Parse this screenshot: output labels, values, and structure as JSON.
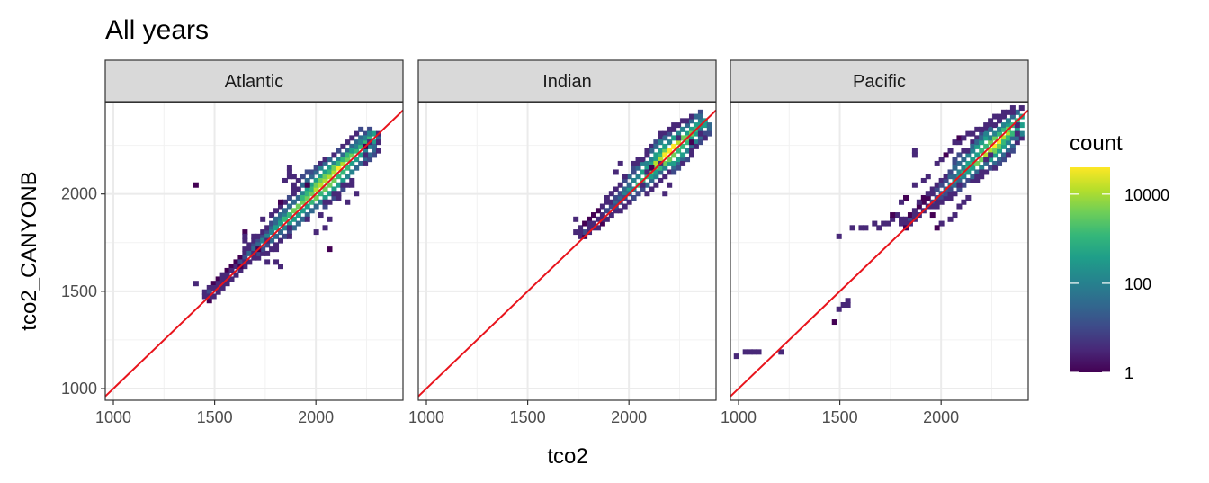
{
  "chart_data": {
    "type": "heatmap",
    "title": "All years",
    "xlabel": "tco2",
    "ylabel": "tco2_CANYONB",
    "xlim": [
      960,
      2430
    ],
    "ylim": [
      940,
      2470
    ],
    "x_ticks": [
      1000,
      1500,
      2000
    ],
    "y_ticks": [
      1000,
      1500,
      2000
    ],
    "grid": true,
    "facets": [
      "Atlantic",
      "Indian",
      "Pacific"
    ],
    "reference_line": {
      "slope": 1,
      "intercept": 0,
      "color": "#e8141c"
    },
    "legend": {
      "title": "count",
      "scale": "log10",
      "breaks": [
        "10000",
        "100",
        "1"
      ],
      "break_values": [
        10000,
        100,
        1
      ],
      "range": [
        1,
        40000
      ],
      "palette": [
        "#440154",
        "#482878",
        "#3e4a89",
        "#31688e",
        "#26828e",
        "#1f9e89",
        "#35b779",
        "#6ece58",
        "#b5de2b",
        "#fde725"
      ],
      "position": "right"
    },
    "bins": {
      "Atlantic": {
        "core": [
          [
            1460,
            1475
          ],
          [
            2290,
            2300
          ]
        ],
        "outliers": [
          [
            1415,
            2045
          ],
          [
            1400,
            1535
          ],
          [
            1460,
            1470
          ],
          [
            1470,
            1480
          ],
          [
            1510,
            1520
          ],
          [
            1540,
            1550
          ],
          [
            1560,
            1540
          ],
          [
            1550,
            1580
          ],
          [
            1570,
            1560
          ],
          [
            1590,
            1570
          ],
          [
            1620,
            1620
          ],
          [
            1650,
            1640
          ],
          [
            1660,
            1660
          ],
          [
            1640,
            1810
          ],
          [
            1650,
            1790
          ],
          [
            1660,
            1760
          ],
          [
            1700,
            1780
          ],
          [
            1720,
            1710
          ],
          [
            1740,
            1700
          ],
          [
            1700,
            1690
          ],
          [
            1730,
            1860
          ],
          [
            1750,
            1750
          ],
          [
            1760,
            1640
          ],
          [
            1800,
            1720
          ],
          [
            1800,
            1660
          ],
          [
            1830,
            1620
          ],
          [
            1830,
            1960
          ],
          [
            1830,
            1750
          ],
          [
            1860,
            1820
          ],
          [
            1880,
            1780
          ],
          [
            1890,
            2040
          ],
          [
            1900,
            2080
          ],
          [
            1920,
            2060
          ],
          [
            1950,
            2040
          ],
          [
            1980,
            2030
          ],
          [
            2010,
            2070
          ],
          [
            2020,
            1900
          ],
          [
            2040,
            1830
          ],
          [
            2010,
            1800
          ],
          [
            2060,
            1860
          ],
          [
            2070,
            1720
          ],
          [
            1840,
            2070
          ],
          [
            1860,
            2080
          ],
          [
            1900,
            1820
          ],
          [
            1920,
            1850
          ],
          [
            1940,
            1870
          ],
          [
            1960,
            1880
          ],
          [
            2000,
            2110
          ],
          [
            2040,
            1960
          ],
          [
            2080,
            2000
          ],
          [
            2100,
            2010
          ],
          [
            2120,
            1980
          ],
          [
            2130,
            2040
          ],
          [
            2150,
            2040
          ],
          [
            2180,
            2040
          ],
          [
            2200,
            2000
          ],
          [
            2150,
            1950
          ],
          [
            2170,
            2250
          ],
          [
            2190,
            2230
          ],
          [
            2240,
            2240
          ],
          [
            2270,
            2260
          ],
          [
            2250,
            2190
          ],
          [
            2300,
            2310
          ],
          [
            2320,
            2300
          ],
          [
            1870,
            2120
          ],
          [
            1880,
            2140
          ],
          [
            1900,
            2020
          ],
          [
            1890,
            1960
          ],
          [
            2060,
            2120
          ]
        ]
      },
      "Indian": {
        "core": [
          [
            1760,
            1790
          ],
          [
            2380,
            2380
          ]
        ],
        "outliers": [
          [
            1740,
            1880
          ],
          [
            1760,
            1800
          ],
          [
            1780,
            1810
          ],
          [
            1800,
            1840
          ],
          [
            1820,
            1850
          ],
          [
            1840,
            1860
          ],
          [
            1860,
            1900
          ],
          [
            1880,
            1930
          ],
          [
            1900,
            1950
          ],
          [
            1880,
            1870
          ],
          [
            1910,
            1900
          ],
          [
            1920,
            2010
          ],
          [
            1950,
            2010
          ],
          [
            1930,
            2120
          ],
          [
            1950,
            2150
          ],
          [
            1980,
            2080
          ],
          [
            2000,
            2100
          ],
          [
            2020,
            2150
          ],
          [
            2040,
            2170
          ],
          [
            2060,
            2180
          ],
          [
            2080,
            2190
          ],
          [
            2100,
            2220
          ],
          [
            2120,
            2250
          ],
          [
            2140,
            2270
          ],
          [
            2160,
            2300
          ],
          [
            2180,
            2320
          ],
          [
            2200,
            2340
          ],
          [
            2220,
            2350
          ],
          [
            2240,
            2360
          ],
          [
            2260,
            2370
          ],
          [
            2280,
            2380
          ],
          [
            2300,
            2380
          ],
          [
            2320,
            2380
          ],
          [
            2350,
            2380
          ],
          [
            2370,
            2360
          ],
          [
            2190,
            2040
          ],
          [
            2170,
            2010
          ],
          [
            2250,
            2290
          ],
          [
            2290,
            2350
          ],
          [
            2330,
            2330
          ],
          [
            2060,
            2050
          ],
          [
            2080,
            2080
          ],
          [
            2100,
            2110
          ],
          [
            2120,
            2140
          ],
          [
            2150,
            2150
          ],
          [
            2170,
            2160
          ],
          [
            2200,
            2180
          ],
          [
            2230,
            2210
          ],
          [
            2260,
            2240
          ],
          [
            2300,
            2270
          ],
          [
            2350,
            2320
          ]
        ]
      },
      "Pacific": {
        "core": [
          [
            1820,
            1840
          ],
          [
            2430,
            2410
          ]
        ],
        "outliers": [
          [
            990,
            1160
          ],
          [
            1040,
            1180
          ],
          [
            1060,
            1180
          ],
          [
            1080,
            1180
          ],
          [
            1100,
            1180
          ],
          [
            1200,
            1180
          ],
          [
            1500,
            1780
          ],
          [
            1470,
            1350
          ],
          [
            1500,
            1400
          ],
          [
            1510,
            1420
          ],
          [
            1530,
            1460
          ],
          [
            1540,
            1440
          ],
          [
            1560,
            1830
          ],
          [
            1600,
            1820
          ],
          [
            1620,
            1820
          ],
          [
            1680,
            1840
          ],
          [
            1700,
            1830
          ],
          [
            1720,
            1850
          ],
          [
            1740,
            1850
          ],
          [
            1770,
            1860
          ],
          [
            1800,
            1860
          ],
          [
            1820,
            1880
          ],
          [
            1840,
            1860
          ],
          [
            1860,
            1890
          ],
          [
            1880,
            1920
          ],
          [
            1900,
            1960
          ],
          [
            1920,
            1980
          ],
          [
            1940,
            2000
          ],
          [
            1950,
            2030
          ],
          [
            1920,
            2070
          ],
          [
            1940,
            2100
          ],
          [
            1980,
            2150
          ],
          [
            2000,
            2180
          ],
          [
            2020,
            2210
          ],
          [
            2040,
            2230
          ],
          [
            2060,
            2260
          ],
          [
            2080,
            2270
          ],
          [
            2100,
            2280
          ],
          [
            2120,
            2290
          ],
          [
            2140,
            2300
          ],
          [
            2160,
            2320
          ],
          [
            2180,
            2330
          ],
          [
            2200,
            2340
          ],
          [
            2220,
            2350
          ],
          [
            2240,
            2380
          ],
          [
            2260,
            2390
          ],
          [
            2280,
            2400
          ],
          [
            2300,
            2410
          ],
          [
            2320,
            2410
          ],
          [
            2350,
            2410
          ],
          [
            2370,
            2410
          ],
          [
            2400,
            2400
          ],
          [
            2420,
            2390
          ],
          [
            2430,
            2370
          ],
          [
            2380,
            2350
          ],
          [
            2400,
            2320
          ],
          [
            2380,
            2300
          ],
          [
            2340,
            2270
          ],
          [
            2320,
            2240
          ],
          [
            2300,
            2210
          ],
          [
            2250,
            2200
          ],
          [
            2230,
            2180
          ],
          [
            2180,
            2150
          ],
          [
            2160,
            2130
          ],
          [
            2120,
            2100
          ],
          [
            2100,
            2070
          ],
          [
            2080,
            2040
          ],
          [
            2060,
            2010
          ],
          [
            2040,
            1980
          ],
          [
            2010,
            1950
          ],
          [
            1990,
            1930
          ],
          [
            1960,
            1900
          ],
          [
            2180,
            2080
          ],
          [
            2200,
            2110
          ],
          [
            2260,
            2140
          ],
          [
            2290,
            2170
          ],
          [
            2330,
            2200
          ],
          [
            2360,
            2230
          ],
          [
            2380,
            2260
          ],
          [
            1880,
            2190
          ],
          [
            1860,
            2230
          ],
          [
            1830,
            1980
          ],
          [
            1800,
            1950
          ],
          [
            2060,
            1900
          ],
          [
            2040,
            1870
          ],
          [
            2000,
            1840
          ],
          [
            1990,
            1830
          ],
          [
            2090,
            1930
          ],
          [
            2120,
            1960
          ],
          [
            2140,
            1990
          ],
          [
            1790,
            1890
          ],
          [
            1770,
            1900
          ],
          [
            1860,
            2050
          ]
        ]
      }
    }
  }
}
